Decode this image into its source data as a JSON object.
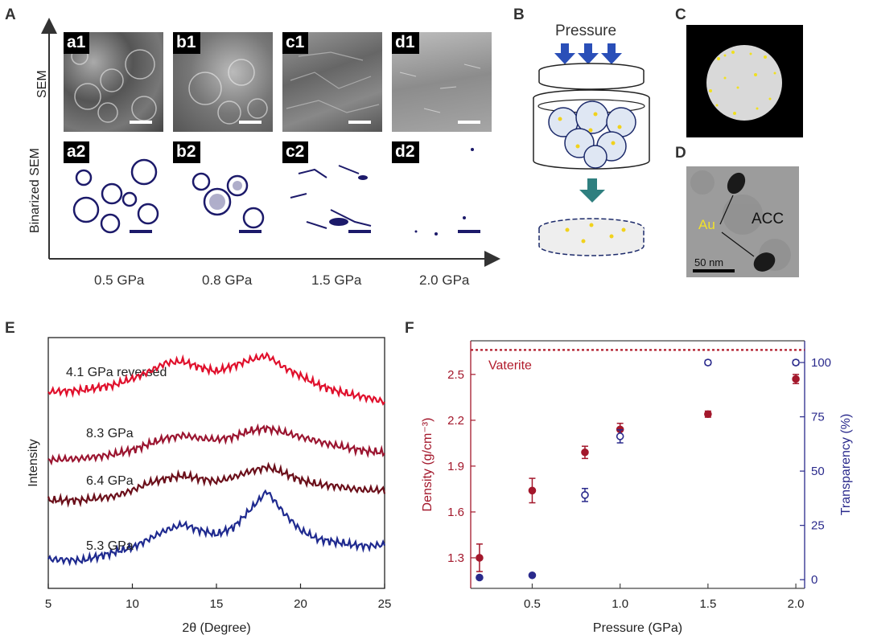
{
  "panel_labels": {
    "A": "A",
    "B": "B",
    "C": "C",
    "D": "D",
    "E": "E",
    "F": "F"
  },
  "panel_a": {
    "row_labels": {
      "sem": "SEM",
      "binarized": "Binarized SEM"
    },
    "tiles_sem": [
      "a1",
      "b1",
      "c1",
      "d1"
    ],
    "tiles_bin": [
      "a2",
      "b2",
      "c2",
      "d2"
    ],
    "pressures": [
      "0.5 GPa",
      "0.8 GPa",
      "1.5 GPa",
      "2.0 GPa"
    ]
  },
  "panel_b": {
    "pressure_label": "Pressure"
  },
  "panel_d": {
    "au_label": "Au",
    "acc_label": "ACC",
    "scale_label": "50 nm"
  },
  "chart_data": [
    {
      "type": "line",
      "panel": "E",
      "xlabel": "2θ (Degree)",
      "ylabel": "Intensity",
      "xlim": [
        5,
        25
      ],
      "xticks": [
        "5",
        "10",
        "15",
        "20",
        "25"
      ],
      "series": [
        {
          "name": "4.1 GPa reversed",
          "color": "#1f2a8f",
          "x": [
            5,
            7,
            9,
            10,
            11,
            12,
            13,
            14,
            15,
            16,
            17,
            18,
            19,
            20,
            21,
            22,
            23,
            24,
            25
          ],
          "y": [
            0.08,
            0.07,
            0.13,
            0.16,
            0.22,
            0.28,
            0.32,
            0.28,
            0.25,
            0.3,
            0.42,
            0.55,
            0.4,
            0.28,
            0.22,
            0.2,
            0.18,
            0.17,
            0.18
          ]
        },
        {
          "name": "8.3 GPa",
          "color": "#6b0f1a",
          "x": [
            5,
            7,
            9,
            10,
            11,
            12,
            13,
            14,
            15,
            16,
            17,
            18,
            19,
            20,
            21,
            22,
            23,
            24,
            25
          ],
          "y": [
            0.07,
            0.07,
            0.1,
            0.14,
            0.19,
            0.22,
            0.24,
            0.22,
            0.2,
            0.23,
            0.27,
            0.3,
            0.26,
            0.21,
            0.18,
            0.17,
            0.15,
            0.14,
            0.14
          ]
        },
        {
          "name": "6.4 GPa",
          "color": "#9b1530",
          "x": [
            5,
            7,
            9,
            10,
            11,
            12,
            13,
            14,
            15,
            16,
            17,
            18,
            19,
            20,
            21,
            22,
            23,
            24,
            25
          ],
          "y": [
            0.06,
            0.07,
            0.1,
            0.13,
            0.17,
            0.21,
            0.23,
            0.21,
            0.2,
            0.22,
            0.26,
            0.28,
            0.25,
            0.22,
            0.19,
            0.16,
            0.14,
            0.12,
            0.11
          ]
        },
        {
          "name": "5.3 GPa",
          "color": "#e0102c",
          "x": [
            5,
            7,
            9,
            10,
            11,
            12,
            13,
            14,
            15,
            16,
            17,
            18,
            19,
            20,
            21,
            22,
            23,
            24,
            25
          ],
          "y": [
            0.07,
            0.08,
            0.12,
            0.16,
            0.21,
            0.27,
            0.28,
            0.24,
            0.21,
            0.25,
            0.29,
            0.32,
            0.24,
            0.18,
            0.12,
            0.08,
            0.05,
            0.03,
            0.0
          ]
        }
      ]
    },
    {
      "type": "scatter",
      "panel": "F",
      "xlabel": "Pressure (GPa)",
      "ylabel_left": "Density (g/cm⁻³)",
      "ylabel_right": "Transparency (%)",
      "xlim": [
        0.15,
        2.05
      ],
      "ylim_left": [
        1.1,
        2.72
      ],
      "ylim_right": [
        -4,
        110
      ],
      "xticks": [
        "0.5",
        "1.0",
        "1.5",
        "2.0"
      ],
      "yticks_left": [
        "1.3",
        "1.6",
        "1.9",
        "2.2",
        "2.5"
      ],
      "yticks_right": [
        "0",
        "25",
        "50",
        "75",
        "100"
      ],
      "reference_line": {
        "label": "Vaterite",
        "value": 2.66,
        "color": "#b11a2a"
      },
      "series": [
        {
          "name": "Density",
          "axis": "left",
          "color": "#a3172b",
          "x": [
            0.2,
            0.5,
            0.8,
            1.0,
            1.5,
            2.0
          ],
          "y": [
            1.3,
            1.74,
            1.99,
            2.14,
            2.24,
            2.47
          ],
          "err": [
            0.09,
            0.08,
            0.04,
            0.04,
            0.02,
            0.03
          ]
        },
        {
          "name": "Transparency",
          "axis": "right",
          "color": "#2a2a8c",
          "x": [
            0.2,
            0.5,
            0.8,
            1.0,
            1.5,
            2.0
          ],
          "y": [
            1,
            2,
            39,
            66,
            100,
            100
          ],
          "err": [
            0.5,
            0.5,
            3,
            3,
            1,
            1
          ]
        }
      ]
    }
  ]
}
